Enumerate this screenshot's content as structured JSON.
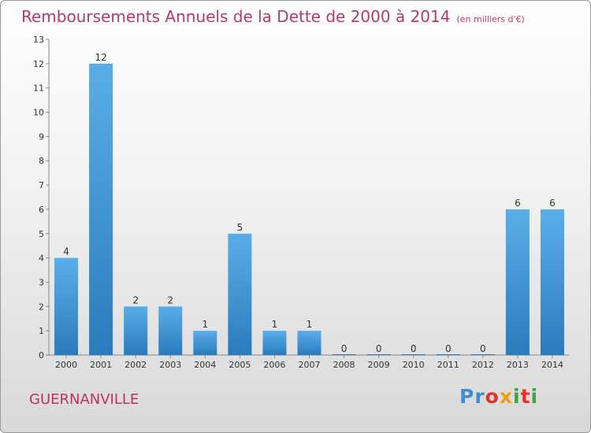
{
  "header": {
    "title": "Remboursements Annuels de la Dette de 2000 à 2014",
    "unit": "(en milliers d'€)"
  },
  "footer": {
    "commune": "GUERNANVILLE",
    "logo": [
      "P",
      "r",
      "o",
      "x",
      "i",
      "t",
      "i"
    ]
  },
  "colors": {
    "title": "#b23a6e",
    "bar_top": "#5aaee8",
    "bar_bottom": "#2a7bbd",
    "logo": [
      "#3a8fd6",
      "#3a8fd6",
      "#e2322e",
      "#f39c12",
      "#3fa33f",
      "#e2322e",
      "#3fa33f"
    ]
  },
  "chart_data": {
    "type": "bar",
    "categories": [
      "2000",
      "2001",
      "2002",
      "2003",
      "2004",
      "2005",
      "2006",
      "2007",
      "2008",
      "2009",
      "2010",
      "2011",
      "2012",
      "2013",
      "2014"
    ],
    "values": [
      4,
      12,
      2,
      2,
      1,
      5,
      1,
      1,
      0,
      0,
      0,
      0,
      0,
      6,
      6
    ],
    "title": "Remboursements Annuels de la Dette de 2000 à 2014",
    "ylim": [
      0,
      13
    ],
    "yticks": [
      0,
      1,
      2,
      3,
      4,
      5,
      6,
      7,
      8,
      9,
      10,
      11,
      12,
      13
    ],
    "grid": false,
    "data_labels": true
  }
}
